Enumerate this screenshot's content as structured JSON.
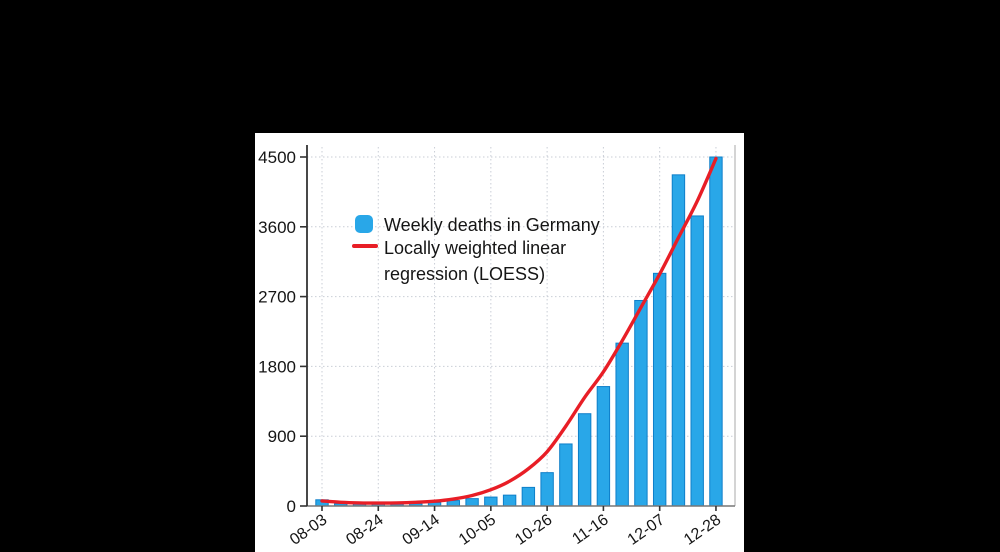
{
  "colors": {
    "page_background": "#000000",
    "panel_background": "#ffffff",
    "bar_fill": "#29a7e8",
    "bar_edge": "#0e7fc9",
    "loess_line": "#e81e26",
    "grid": "#c9ced6",
    "axis_left": "#333333",
    "axis_bottom": "#777777",
    "plot_right_border": "#aaaaaa",
    "text": "#151515"
  },
  "legend": {
    "items": [
      {
        "label": "Weekly deaths in Germany",
        "marker": "blue-rounded-square"
      },
      {
        "label": "Locally weighted linear regression (LOESS)",
        "marker": "red-line"
      }
    ]
  },
  "chart_data": {
    "type": "bar",
    "title": "",
    "xlabel": "",
    "ylabel": "",
    "categories": [
      "08-03",
      "08-10",
      "08-17",
      "08-24",
      "08-31",
      "09-07",
      "09-14",
      "09-21",
      "09-28",
      "10-05",
      "10-12",
      "10-19",
      "10-26",
      "11-02",
      "11-09",
      "11-16",
      "11-23",
      "11-30",
      "12-07",
      "12-14",
      "12-21",
      "12-28"
    ],
    "series": [
      {
        "name": "Weekly deaths in Germany",
        "type": "bar",
        "color": "#29a7e8",
        "values": [
          80,
          30,
          25,
          30,
          25,
          30,
          45,
          70,
          95,
          115,
          140,
          240,
          430,
          800,
          1190,
          1540,
          2100,
          2650,
          3000,
          4270,
          3740,
          4500
        ]
      },
      {
        "name": "Locally weighted linear regression (LOESS)",
        "type": "line",
        "color": "#e81e26",
        "values": [
          65,
          48,
          40,
          38,
          40,
          48,
          62,
          90,
          135,
          210,
          320,
          480,
          700,
          1030,
          1400,
          1730,
          2130,
          2560,
          2990,
          3460,
          3930,
          4480
        ]
      }
    ],
    "x_tick_labels": [
      "08-03",
      "08-24",
      "09-14",
      "10-05",
      "10-26",
      "11-16",
      "12-07",
      "12-28"
    ],
    "x_tick_every": 3,
    "y_ticks": [
      0,
      900,
      1800,
      2700,
      3600,
      4500
    ],
    "ylim": [
      0,
      4500
    ],
    "grid": "dotted",
    "legend_position": "upper-left-inside"
  }
}
